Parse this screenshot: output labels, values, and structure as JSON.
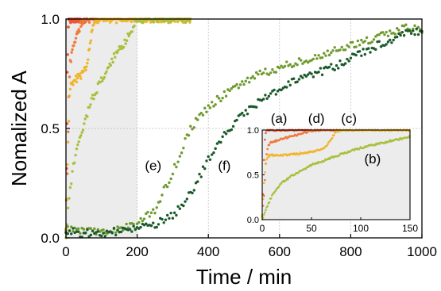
{
  "chart_data": [
    {
      "type": "scatter",
      "title": "",
      "xlabel": "Time / min",
      "ylabel": "Nomalized A",
      "xlim": [
        0,
        1000
      ],
      "ylim": [
        0,
        1.0
      ],
      "x_ticks": [
        "0",
        "200",
        "400",
        "600",
        "800",
        "1000"
      ],
      "y_ticks": [
        "0.0",
        "0.5",
        "1.0"
      ],
      "grid": true,
      "shaded_region_x": [
        0,
        200
      ],
      "series": [
        {
          "name": "(a)",
          "color": "#ee5533",
          "points": [
            [
              0,
              0.05
            ],
            [
              2,
              0.3
            ],
            [
              4,
              0.75
            ],
            [
              6,
              0.95
            ],
            [
              8,
              1.0
            ],
            [
              15,
              1.0
            ],
            [
              30,
              1.0
            ],
            [
              45,
              1.0
            ],
            [
              60,
              1.0
            ]
          ]
        },
        {
          "name": "(d)",
          "color": "#f07a3a",
          "points": [
            [
              0,
              0.03
            ],
            [
              4,
              0.3
            ],
            [
              8,
              0.65
            ],
            [
              12,
              0.8
            ],
            [
              20,
              0.88
            ],
            [
              30,
              0.92
            ],
            [
              40,
              0.97
            ],
            [
              50,
              1.0
            ],
            [
              65,
              1.0
            ],
            [
              90,
              1.0
            ]
          ]
        },
        {
          "name": "(c)",
          "color": "#f0b52a",
          "points": [
            [
              0,
              0.05
            ],
            [
              5,
              0.4
            ],
            [
              10,
              0.65
            ],
            [
              15,
              0.7
            ],
            [
              25,
              0.72
            ],
            [
              40,
              0.74
            ],
            [
              55,
              0.77
            ],
            [
              65,
              0.85
            ],
            [
              75,
              0.98
            ],
            [
              90,
              1.0
            ],
            [
              150,
              1.0
            ],
            [
              200,
              1.0
            ],
            [
              250,
              1.0
            ],
            [
              300,
              1.0
            ],
            [
              350,
              1.0
            ]
          ]
        },
        {
          "name": "(b)",
          "color": "#a8c040",
          "points": [
            [
              0,
              0.0
            ],
            [
              10,
              0.2
            ],
            [
              20,
              0.32
            ],
            [
              40,
              0.46
            ],
            [
              60,
              0.57
            ],
            [
              80,
              0.66
            ],
            [
              100,
              0.72
            ],
            [
              120,
              0.78
            ],
            [
              140,
              0.84
            ],
            [
              160,
              0.88
            ],
            [
              180,
              0.94
            ],
            [
              200,
              1.0
            ],
            [
              250,
              1.0
            ],
            [
              300,
              1.0
            ],
            [
              350,
              1.0
            ]
          ]
        },
        {
          "name": "(e)",
          "color": "#6f9a2e",
          "points": [
            [
              0,
              0.04
            ],
            [
              50,
              0.03
            ],
            [
              100,
              0.03
            ],
            [
              150,
              0.04
            ],
            [
              200,
              0.06
            ],
            [
              250,
              0.13
            ],
            [
              300,
              0.3
            ],
            [
              350,
              0.5
            ],
            [
              400,
              0.6
            ],
            [
              450,
              0.66
            ],
            [
              500,
              0.71
            ],
            [
              550,
              0.75
            ],
            [
              600,
              0.78
            ],
            [
              650,
              0.8
            ],
            [
              700,
              0.83
            ],
            [
              750,
              0.85
            ],
            [
              800,
              0.88
            ],
            [
              850,
              0.9
            ],
            [
              900,
              0.93
            ],
            [
              950,
              0.96
            ],
            [
              1000,
              0.95
            ]
          ]
        },
        {
          "name": "(f)",
          "color": "#1a5a2a",
          "points": [
            [
              0,
              0.03
            ],
            [
              50,
              0.02
            ],
            [
              100,
              0.02
            ],
            [
              150,
              0.03
            ],
            [
              200,
              0.04
            ],
            [
              250,
              0.06
            ],
            [
              300,
              0.1
            ],
            [
              350,
              0.2
            ],
            [
              400,
              0.36
            ],
            [
              450,
              0.48
            ],
            [
              500,
              0.57
            ],
            [
              550,
              0.63
            ],
            [
              600,
              0.68
            ],
            [
              650,
              0.72
            ],
            [
              700,
              0.75
            ],
            [
              750,
              0.78
            ],
            [
              800,
              0.82
            ],
            [
              850,
              0.86
            ],
            [
              900,
              0.9
            ],
            [
              950,
              0.93
            ],
            [
              1000,
              0.95
            ]
          ]
        }
      ]
    },
    {
      "type": "scatter",
      "title": "",
      "xlabel": "",
      "ylabel": "",
      "xlim": [
        0,
        150
      ],
      "ylim": [
        0,
        1.0
      ],
      "x_ticks": [
        "0",
        "50",
        "100",
        "150"
      ],
      "y_ticks": [
        "0.0",
        "0.5",
        "1.0"
      ],
      "grid": false,
      "background": "#ececec",
      "series": [
        {
          "name": "(a)",
          "color": "#ee5533",
          "points": [
            [
              0,
              0.05
            ],
            [
              1,
              0.3
            ],
            [
              2,
              0.75
            ],
            [
              3,
              0.95
            ],
            [
              5,
              1.0
            ],
            [
              10,
              1.0
            ],
            [
              20,
              1.0
            ],
            [
              30,
              1.0
            ],
            [
              40,
              1.0
            ],
            [
              50,
              1.0
            ],
            [
              60,
              1.0
            ]
          ]
        },
        {
          "name": "(d)",
          "color": "#f07a3a",
          "points": [
            [
              0,
              0.03
            ],
            [
              2,
              0.3
            ],
            [
              4,
              0.7
            ],
            [
              6,
              0.83
            ],
            [
              10,
              0.87
            ],
            [
              15,
              0.88
            ],
            [
              20,
              0.9
            ],
            [
              30,
              0.93
            ],
            [
              40,
              0.96
            ],
            [
              50,
              0.99
            ],
            [
              55,
              1.0
            ],
            [
              65,
              1.0
            ],
            [
              80,
              1.0
            ]
          ]
        },
        {
          "name": "(c)",
          "color": "#f0b52a",
          "points": [
            [
              0,
              0.05
            ],
            [
              2,
              0.45
            ],
            [
              4,
              0.67
            ],
            [
              6,
              0.71
            ],
            [
              10,
              0.72
            ],
            [
              20,
              0.72
            ],
            [
              30,
              0.73
            ],
            [
              40,
              0.74
            ],
            [
              50,
              0.76
            ],
            [
              60,
              0.78
            ],
            [
              65,
              0.82
            ],
            [
              70,
              0.9
            ],
            [
              75,
              0.98
            ],
            [
              80,
              1.0
            ],
            [
              100,
              1.0
            ],
            [
              120,
              1.0
            ],
            [
              150,
              1.0
            ]
          ]
        },
        {
          "name": "(b)",
          "color": "#a8c040",
          "points": [
            [
              0,
              0.0
            ],
            [
              5,
              0.15
            ],
            [
              10,
              0.27
            ],
            [
              15,
              0.35
            ],
            [
              20,
              0.41
            ],
            [
              30,
              0.49
            ],
            [
              40,
              0.55
            ],
            [
              50,
              0.61
            ],
            [
              60,
              0.65
            ],
            [
              70,
              0.69
            ],
            [
              80,
              0.73
            ],
            [
              90,
              0.77
            ],
            [
              100,
              0.8
            ],
            [
              110,
              0.83
            ],
            [
              120,
              0.85
            ],
            [
              130,
              0.88
            ],
            [
              140,
              0.9
            ],
            [
              150,
              0.93
            ]
          ]
        }
      ]
    }
  ]
}
